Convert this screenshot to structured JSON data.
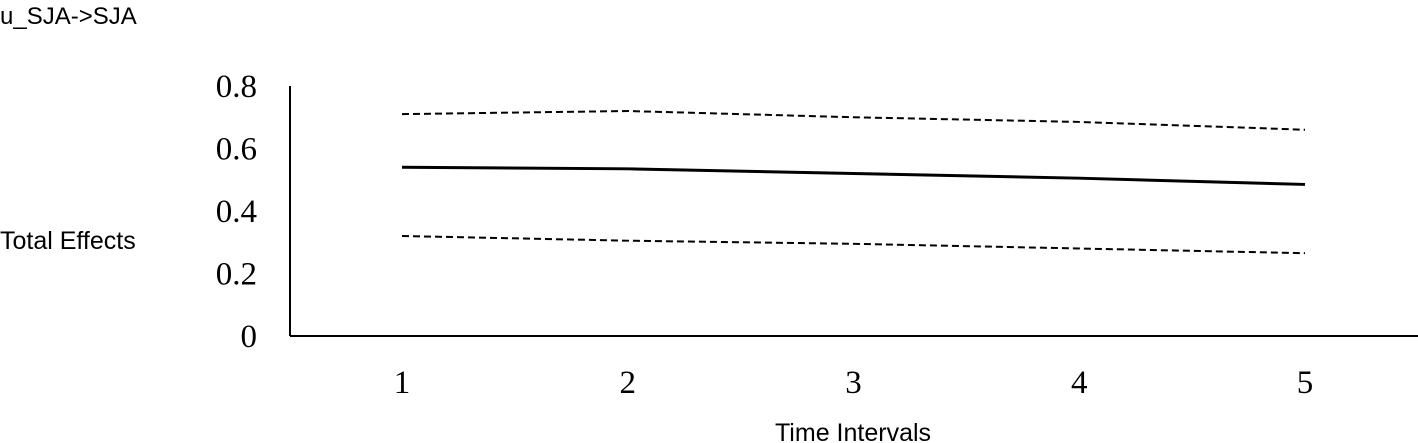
{
  "chart_data": {
    "type": "line",
    "title": "u_SJA->SJA",
    "xlabel": "Time Intervals",
    "ylabel": "Total Effects",
    "x": [
      1,
      2,
      3,
      4,
      5
    ],
    "xticks": [
      "1",
      "2",
      "3",
      "4",
      "5"
    ],
    "yticks": [
      "0",
      "0.2",
      "0.4",
      "0.6",
      "0.8"
    ],
    "ylim": [
      0,
      0.8
    ],
    "grid": false,
    "series": [
      {
        "style": "dashed",
        "values": [
          0.71,
          0.72,
          0.7,
          0.685,
          0.66
        ]
      },
      {
        "style": "solid",
        "values": [
          0.54,
          0.535,
          0.52,
          0.505,
          0.485
        ]
      },
      {
        "style": "dashed",
        "values": [
          0.32,
          0.305,
          0.295,
          0.28,
          0.265
        ]
      }
    ]
  }
}
